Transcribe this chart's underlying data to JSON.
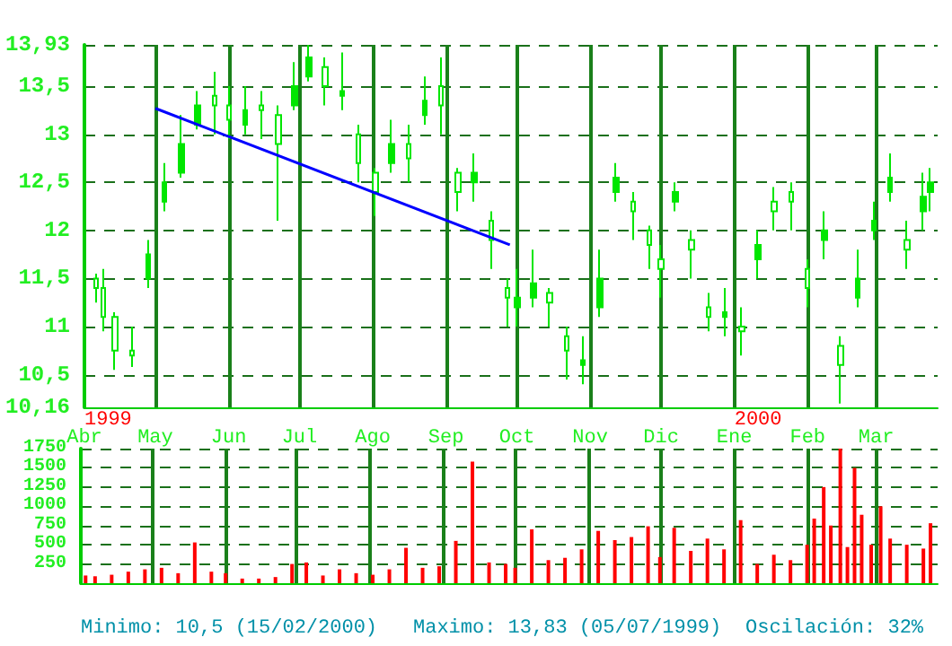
{
  "chart_data": [
    {
      "type": "candlestick",
      "color": "#00e600",
      "marker": "none",
      "grid": true,
      "x": [
        "1999-04-06",
        "1999-04-09",
        "1999-04-14",
        "1999-04-21",
        "1999-04-28",
        "1999-05-05",
        "1999-05-12",
        "1999-05-19",
        "1999-05-26",
        "1999-06-01",
        "1999-06-08",
        "1999-06-15",
        "1999-06-22",
        "1999-06-29",
        "1999-07-05",
        "1999-07-12",
        "1999-07-19",
        "1999-07-26",
        "1999-08-02",
        "1999-08-09",
        "1999-08-16",
        "1999-08-23",
        "1999-08-30",
        "1999-09-06",
        "1999-09-13",
        "1999-09-20",
        "1999-09-27",
        "1999-10-01",
        "1999-10-08",
        "1999-10-15",
        "1999-10-22",
        "1999-10-29",
        "1999-11-05",
        "1999-11-12",
        "1999-11-19",
        "1999-11-26",
        "1999-12-01",
        "1999-12-07",
        "1999-12-14",
        "1999-12-21",
        "1999-12-28",
        "2000-01-04",
        "2000-01-11",
        "2000-01-18",
        "2000-01-25",
        "2000-02-01",
        "2000-02-08",
        "2000-02-15",
        "2000-02-22",
        "2000-02-29",
        "2000-03-07",
        "2000-03-14",
        "2000-03-21",
        "2000-03-24"
      ],
      "ohlc": [
        [
          11.5,
          11.55,
          11.25,
          11.4
        ],
        [
          11.4,
          11.6,
          10.95,
          11.1
        ],
        [
          11.1,
          11.15,
          10.55,
          10.75
        ],
        [
          10.75,
          11.0,
          10.58,
          10.7
        ],
        [
          11.5,
          11.9,
          11.4,
          11.75
        ],
        [
          12.3,
          12.7,
          12.2,
          12.5
        ],
        [
          12.6,
          13.2,
          12.55,
          12.9
        ],
        [
          13.1,
          13.45,
          13.05,
          13.3
        ],
        [
          13.4,
          13.65,
          13.0,
          13.3
        ],
        [
          13.3,
          13.5,
          12.95,
          13.15
        ],
        [
          13.1,
          13.5,
          13.0,
          13.25
        ],
        [
          13.3,
          13.45,
          12.95,
          13.25
        ],
        [
          13.2,
          13.3,
          12.1,
          12.9
        ],
        [
          13.3,
          13.75,
          13.25,
          13.5
        ],
        [
          13.6,
          13.93,
          13.55,
          13.8
        ],
        [
          13.7,
          13.8,
          13.3,
          13.5
        ],
        [
          13.4,
          13.85,
          13.25,
          13.45
        ],
        [
          13.0,
          13.1,
          12.5,
          12.7
        ],
        [
          12.6,
          12.65,
          12.15,
          12.4
        ],
        [
          12.7,
          13.15,
          12.6,
          12.9
        ],
        [
          12.9,
          13.1,
          12.5,
          12.75
        ],
        [
          13.2,
          13.6,
          13.1,
          13.35
        ],
        [
          13.5,
          13.8,
          13.0,
          13.3
        ],
        [
          12.6,
          12.65,
          12.2,
          12.4
        ],
        [
          12.5,
          12.8,
          12.3,
          12.6
        ],
        [
          12.1,
          12.2,
          11.6,
          11.9
        ],
        [
          11.4,
          11.5,
          11.0,
          11.3
        ],
        [
          11.2,
          11.6,
          11.0,
          11.3
        ],
        [
          11.3,
          11.8,
          11.2,
          11.45
        ],
        [
          11.35,
          11.4,
          11.0,
          11.25
        ],
        [
          10.9,
          11.0,
          10.45,
          10.75
        ],
        [
          10.6,
          10.9,
          10.4,
          10.65
        ],
        [
          11.2,
          11.8,
          11.1,
          11.5
        ],
        [
          12.4,
          12.7,
          12.3,
          12.55
        ],
        [
          12.3,
          12.4,
          11.9,
          12.2
        ],
        [
          12.0,
          12.05,
          11.6,
          11.85
        ],
        [
          11.7,
          11.85,
          11.3,
          11.6
        ],
        [
          12.3,
          12.5,
          12.2,
          12.4
        ],
        [
          11.9,
          12.0,
          11.5,
          11.8
        ],
        [
          11.2,
          11.35,
          10.95,
          11.1
        ],
        [
          11.1,
          11.4,
          10.9,
          11.15
        ],
        [
          11.0,
          11.2,
          10.7,
          10.95
        ],
        [
          11.7,
          12.0,
          11.5,
          11.85
        ],
        [
          12.3,
          12.45,
          12.0,
          12.2
        ],
        [
          12.4,
          12.5,
          12.0,
          12.3
        ],
        [
          11.6,
          11.7,
          11.2,
          11.4
        ],
        [
          11.9,
          12.2,
          11.7,
          12.0
        ],
        [
          10.8,
          10.9,
          10.2,
          10.6
        ],
        [
          11.3,
          11.8,
          11.2,
          11.5
        ],
        [
          12.0,
          12.3,
          11.9,
          12.1
        ],
        [
          12.4,
          12.8,
          12.3,
          12.55
        ],
        [
          11.9,
          12.1,
          11.6,
          11.8
        ],
        [
          12.2,
          12.6,
          12.0,
          12.35
        ],
        [
          12.4,
          12.65,
          12.2,
          12.5
        ]
      ],
      "series": [
        {
          "type": "line",
          "color": "#0000ff",
          "x": [
            "1999-05-01",
            "1999-09-28"
          ],
          "values": [
            13.27,
            11.85
          ]
        }
      ],
      "xlim": [
        "1999-04-01",
        "2000-03-27"
      ],
      "xticks": [
        {
          "value": "1999-04-01",
          "label": "Abr"
        },
        {
          "value": "1999-05-01",
          "label": "May"
        },
        {
          "value": "1999-06-01",
          "label": "Jun"
        },
        {
          "value": "1999-07-01",
          "label": "Jul"
        },
        {
          "value": "1999-08-01",
          "label": "Ago"
        },
        {
          "value": "1999-09-01",
          "label": "Sep"
        },
        {
          "value": "1999-10-01",
          "label": "Oct"
        },
        {
          "value": "1999-11-01",
          "label": "Nov"
        },
        {
          "value": "1999-12-01",
          "label": "Dic"
        },
        {
          "value": "2000-01-01",
          "label": "Ene"
        },
        {
          "value": "2000-02-01",
          "label": "Feb"
        },
        {
          "value": "2000-03-01",
          "label": "Mar"
        }
      ],
      "ylim": [
        10.16,
        13.93
      ],
      "yticks": [
        {
          "value": 10.16,
          "label": "10,16"
        },
        {
          "value": 10.5,
          "label": "10,5"
        },
        11,
        {
          "value": 11.5,
          "label": "11,5"
        },
        12,
        {
          "value": 12.5,
          "label": "12,5"
        },
        13,
        {
          "value": 13.5,
          "label": "13,5"
        },
        {
          "value": 13.93,
          "label": "13,93"
        }
      ],
      "annotations": [
        "1999",
        "2000"
      ]
    },
    {
      "type": "bar",
      "color": "#ff0000",
      "grid": true,
      "tick_labels": "y",
      "x": [
        "1999-04-03",
        "1999-04-07",
        "1999-04-14",
        "1999-04-21",
        "1999-04-28",
        "1999-05-05",
        "1999-05-12",
        "1999-05-19",
        "1999-05-26",
        "1999-06-01",
        "1999-06-08",
        "1999-06-15",
        "1999-06-22",
        "1999-06-29",
        "1999-07-05",
        "1999-07-12",
        "1999-07-19",
        "1999-07-26",
        "1999-08-02",
        "1999-08-09",
        "1999-08-16",
        "1999-08-23",
        "1999-08-30",
        "1999-09-06",
        "1999-09-13",
        "1999-09-20",
        "1999-09-27",
        "1999-10-01",
        "1999-10-08",
        "1999-10-15",
        "1999-10-22",
        "1999-10-29",
        "1999-11-05",
        "1999-11-12",
        "1999-11-19",
        "1999-11-26",
        "1999-12-01",
        "1999-12-07",
        "1999-12-14",
        "1999-12-21",
        "1999-12-28",
        "2000-01-04",
        "2000-01-11",
        "2000-01-18",
        "2000-01-25",
        "2000-02-01",
        "2000-02-04",
        "2000-02-08",
        "2000-02-11",
        "2000-02-15",
        "2000-02-18",
        "2000-02-21",
        "2000-02-24",
        "2000-02-28",
        "2000-03-03",
        "2000-03-07",
        "2000-03-14",
        "2000-03-21",
        "2000-03-24"
      ],
      "values": [
        100,
        90,
        110,
        150,
        180,
        200,
        130,
        530,
        150,
        130,
        60,
        60,
        80,
        250,
        270,
        100,
        180,
        130,
        110,
        180,
        460,
        200,
        220,
        550,
        1580,
        270,
        250,
        200,
        700,
        300,
        330,
        440,
        680,
        560,
        600,
        740,
        340,
        720,
        420,
        580,
        440,
        820,
        250,
        370,
        300,
        500,
        840,
        1250,
        750,
        1750,
        470,
        1500,
        890,
        500,
        1000,
        580,
        500,
        450,
        780
      ],
      "xlim": [
        "1999-04-01",
        "2000-03-27"
      ],
      "xticks": [
        {
          "value": "1999-04-01",
          "label": null
        },
        {
          "value": "1999-05-01",
          "label": null
        },
        {
          "value": "1999-06-01",
          "label": null
        },
        {
          "value": "1999-07-01",
          "label": null
        },
        {
          "value": "1999-08-01",
          "label": null
        },
        {
          "value": "1999-09-01",
          "label": null
        },
        {
          "value": "1999-10-01",
          "label": null
        },
        {
          "value": "1999-11-01",
          "label": null
        },
        {
          "value": "1999-12-01",
          "label": null
        },
        {
          "value": "2000-01-01",
          "label": null
        },
        {
          "value": "2000-02-01",
          "label": null
        },
        {
          "value": "2000-03-01",
          "label": null
        }
      ],
      "ylim": [
        0,
        1750
      ],
      "yticks": [
        250,
        500,
        750,
        1000,
        1250,
        1500,
        1750
      ],
      "annotations": [
        "Minimo: 10,5 (15/02/2000)",
        "Maximo: 13,83 (05/07/1999)",
        "Oscilación: 32%"
      ]
    }
  ]
}
